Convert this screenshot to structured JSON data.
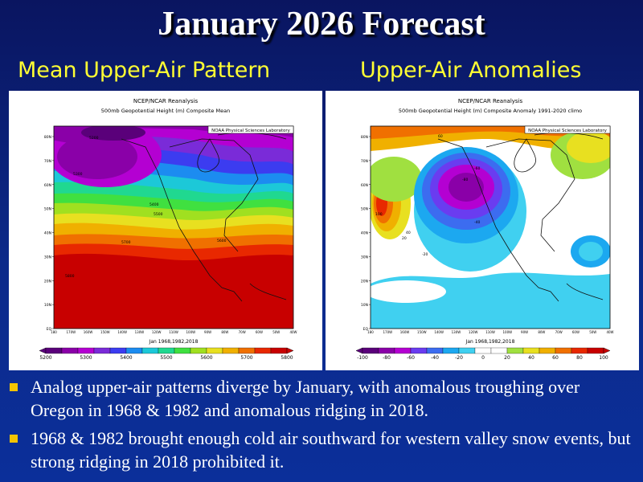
{
  "title": "January 2026 Forecast",
  "left_heading": "Mean Upper-Air Pattern",
  "right_heading": "Upper-Air Anomalies",
  "left_map": {
    "source": "NCEP/NCAR Reanalysis",
    "description": "500mb Geopotential Height (m) Composite Mean",
    "lab": "NOAA Physical Sciences Laboratory",
    "dates": "Jan 1968,1982,2018",
    "colorbar_labels": [
      "5200",
      "5300",
      "5400",
      "5500",
      "5600",
      "5700",
      "5800"
    ],
    "colorbar_colors": [
      "#5a007a",
      "#8a00a8",
      "#b400d2",
      "#7a2bd8",
      "#3c3cf0",
      "#1c8cf0",
      "#1cc8d8",
      "#20d890",
      "#40e040",
      "#a0e020",
      "#e8e020",
      "#f0b000",
      "#f07000",
      "#e82800",
      "#c80000"
    ],
    "contour_labels": [
      "5200",
      "5300",
      "5400",
      "5500",
      "5600",
      "5700",
      "5800"
    ]
  },
  "right_map": {
    "source": "NCEP/NCAR Reanalysis",
    "description": "500mb Geopotential Height (m) Composite Anomaly 1991-2020 climo",
    "lab": "NOAA Physical Sciences Laboratory",
    "dates": "Jan 1968,1982,2018",
    "colorbar_labels": [
      "-100",
      "-80",
      "-60",
      "-40",
      "-20",
      "0",
      "20",
      "40",
      "60",
      "80",
      "100"
    ],
    "colorbar_colors": [
      "#5a007a",
      "#8a00a8",
      "#b400d2",
      "#6a3cf0",
      "#3c6cf0",
      "#1ca8f0",
      "#40d0f0",
      "#ffffff",
      "#ffffff",
      "#a0e040",
      "#e8e020",
      "#f0b000",
      "#f07000",
      "#e82800",
      "#c80000"
    ],
    "contour_labels": [
      "-80",
      "-60",
      "-40",
      "-20",
      "20",
      "40",
      "60",
      "100"
    ]
  },
  "axis": {
    "lat_labels": [
      "80N",
      "70N",
      "60N",
      "50N",
      "40N",
      "30N",
      "20N",
      "10N",
      "EQ"
    ],
    "lon_labels": [
      "180",
      "170W",
      "160W",
      "150W",
      "140W",
      "130W",
      "120W",
      "110W",
      "100W",
      "90W",
      "80W",
      "70W",
      "60W",
      "50W",
      "40W"
    ]
  },
  "bullets": [
    "Analog upper-air patterns diverge by January, with anomalous troughing over Oregon in 1968 & 1982 and anomalous ridging in 2018.",
    "1968 & 1982 brought enough cold air southward for western valley snow events, but strong ridging in 2018 prohibited it."
  ]
}
